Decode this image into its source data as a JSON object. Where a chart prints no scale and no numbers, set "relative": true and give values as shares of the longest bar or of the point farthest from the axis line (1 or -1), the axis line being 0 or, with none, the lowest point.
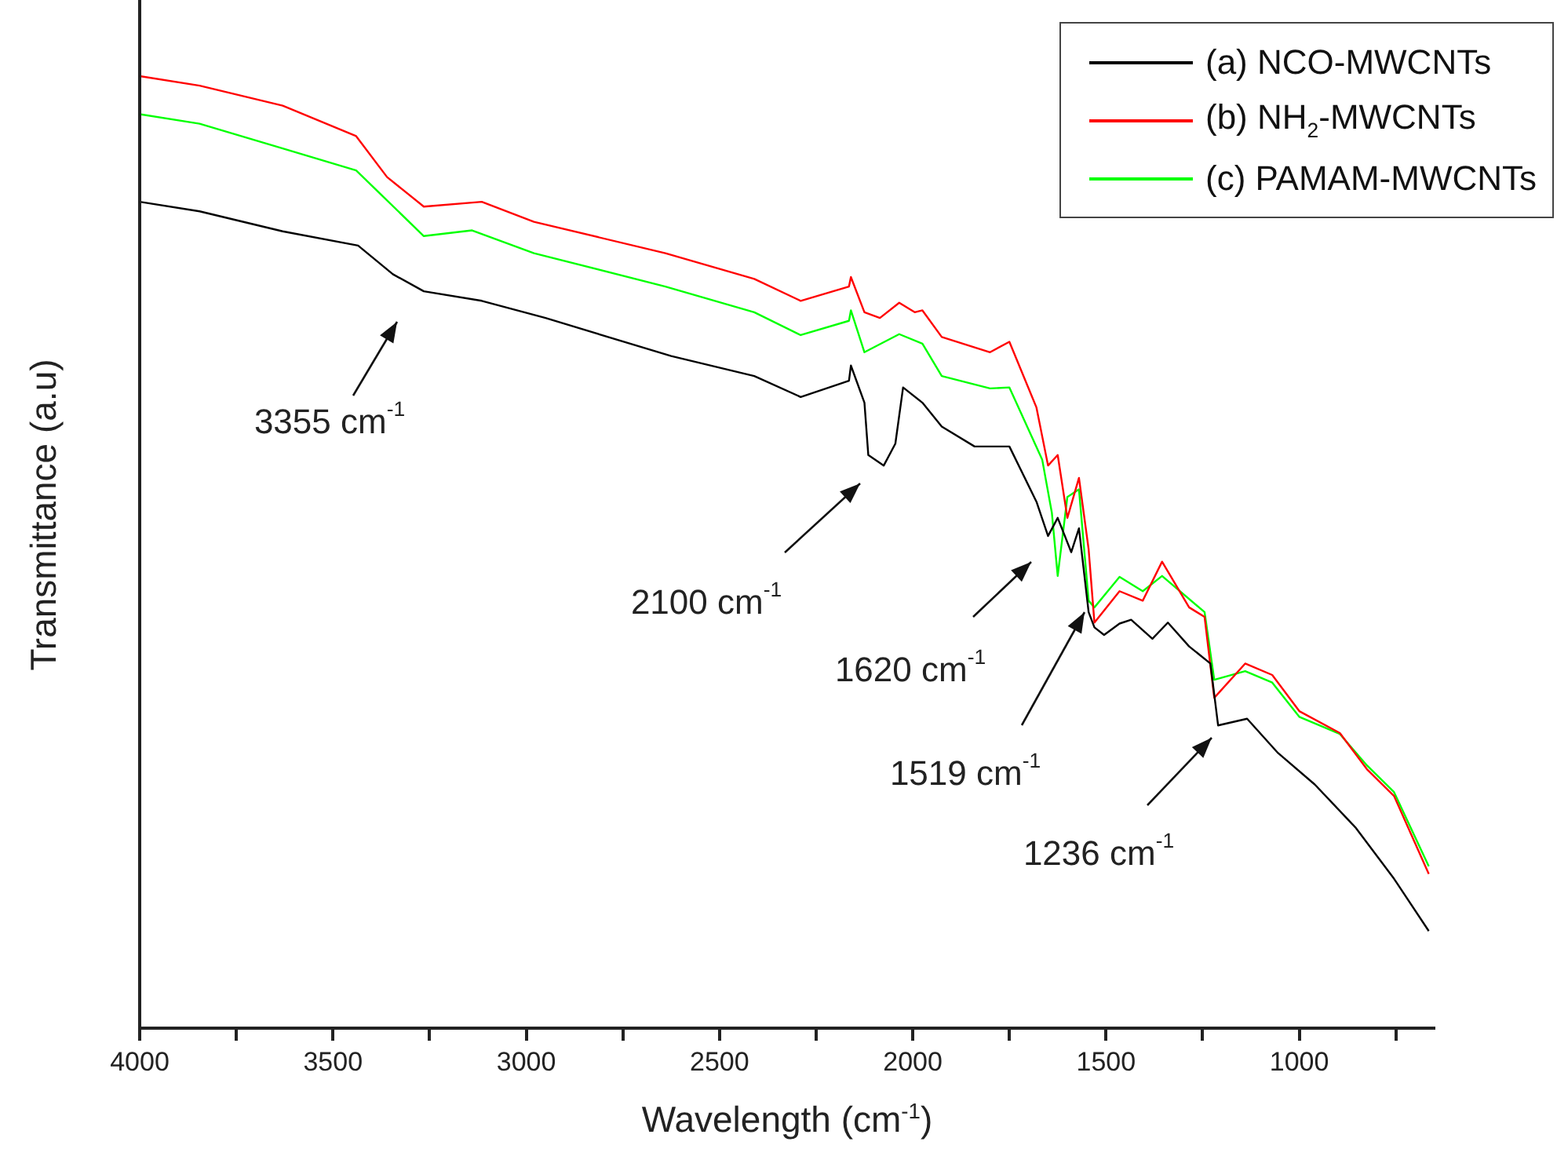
{
  "chart_data": {
    "type": "line",
    "relative": true,
    "xlabel": "Wavelength (cm$^{-1}$)",
    "ylabel": "Transmittance (a.u)",
    "xlim": [
      4000,
      650
    ],
    "xticks": [
      4000,
      {
        "value": 3750,
        "label": null
      },
      3500,
      {
        "value": 3250,
        "label": null
      },
      3000,
      {
        "value": 2750,
        "label": null
      },
      2500,
      {
        "value": 2250,
        "label": null
      },
      2000,
      {
        "value": 1750,
        "label": null
      },
      1500,
      {
        "value": 1250,
        "label": null
      },
      1000,
      {
        "value": 750,
        "label": null
      }
    ],
    "legend": "top right",
    "marker": "none",
    "series": [
      {
        "name": "(a) NCO-MWCNTs",
        "color": "#000000",
        "x": [
          4000,
          3845,
          3630,
          3435,
          3345,
          3265,
          3115,
          2950,
          2625,
          2410,
          2290,
          2165,
          2160,
          2125,
          2115,
          2075,
          2045,
          2025,
          1975,
          1925,
          1840,
          1750,
          1680,
          1650,
          1625,
          1590,
          1570,
          1545,
          1530,
          1505,
          1465,
          1435,
          1380,
          1340,
          1285,
          1230,
          1210,
          1135,
          1055,
          960,
          855,
          755,
          665
        ],
        "values": [
          0.868,
          0.858,
          0.837,
          0.822,
          0.792,
          0.774,
          0.764,
          0.746,
          0.706,
          0.685,
          0.663,
          0.68,
          0.696,
          0.657,
          0.602,
          0.591,
          0.614,
          0.673,
          0.657,
          0.632,
          0.611,
          0.611,
          0.553,
          0.517,
          0.536,
          0.5,
          0.525,
          0.437,
          0.421,
          0.413,
          0.425,
          0.429,
          0.409,
          0.426,
          0.401,
          0.383,
          0.318,
          0.325,
          0.289,
          0.256,
          0.211,
          0.157,
          0.102
        ]
      },
      {
        "name": "(b) NH$_{2}$-MWCNTs",
        "color": "#ff0000",
        "x": [
          4000,
          3845,
          3630,
          3440,
          3360,
          3265,
          3115,
          2980,
          2640,
          2410,
          2290,
          2165,
          2160,
          2125,
          2085,
          2035,
          1995,
          1975,
          1925,
          1800,
          1750,
          1680,
          1650,
          1625,
          1600,
          1570,
          1545,
          1530,
          1465,
          1405,
          1355,
          1285,
          1245,
          1220,
          1140,
          1070,
          1000,
          895,
          825,
          755,
          665
        ],
        "values": [
          1.0,
          0.99,
          0.969,
          0.937,
          0.894,
          0.863,
          0.868,
          0.847,
          0.814,
          0.787,
          0.764,
          0.779,
          0.789,
          0.752,
          0.746,
          0.762,
          0.752,
          0.754,
          0.726,
          0.71,
          0.721,
          0.652,
          0.591,
          0.602,
          0.536,
          0.578,
          0.503,
          0.426,
          0.459,
          0.449,
          0.49,
          0.442,
          0.432,
          0.347,
          0.383,
          0.371,
          0.333,
          0.31,
          0.272,
          0.244,
          0.162
        ]
      },
      {
        "name": "(c) PAMAM-MWCNTs",
        "color": "#00ff00",
        "x": [
          4000,
          3845,
          3630,
          3440,
          3265,
          3140,
          2980,
          2640,
          2410,
          2290,
          2165,
          2160,
          2125,
          2035,
          1975,
          1925,
          1800,
          1750,
          1665,
          1640,
          1625,
          1600,
          1570,
          1545,
          1530,
          1465,
          1405,
          1355,
          1245,
          1220,
          1140,
          1070,
          1000,
          895,
          825,
          755,
          665
        ],
        "values": [
          0.96,
          0.95,
          0.924,
          0.901,
          0.832,
          0.838,
          0.814,
          0.779,
          0.752,
          0.728,
          0.743,
          0.754,
          0.71,
          0.729,
          0.719,
          0.685,
          0.672,
          0.673,
          0.597,
          0.541,
          0.475,
          0.558,
          0.566,
          0.449,
          0.442,
          0.474,
          0.459,
          0.475,
          0.437,
          0.366,
          0.375,
          0.363,
          0.327,
          0.309,
          0.276,
          0.248,
          0.17
        ]
      }
    ],
    "annotations": [
      "3355 cm$^{-1}$",
      "2100 cm$^{-1}$",
      "1620 cm$^{-1}$",
      "1519 cm$^{-1}$",
      "1236 cm$^{-1}$"
    ]
  }
}
